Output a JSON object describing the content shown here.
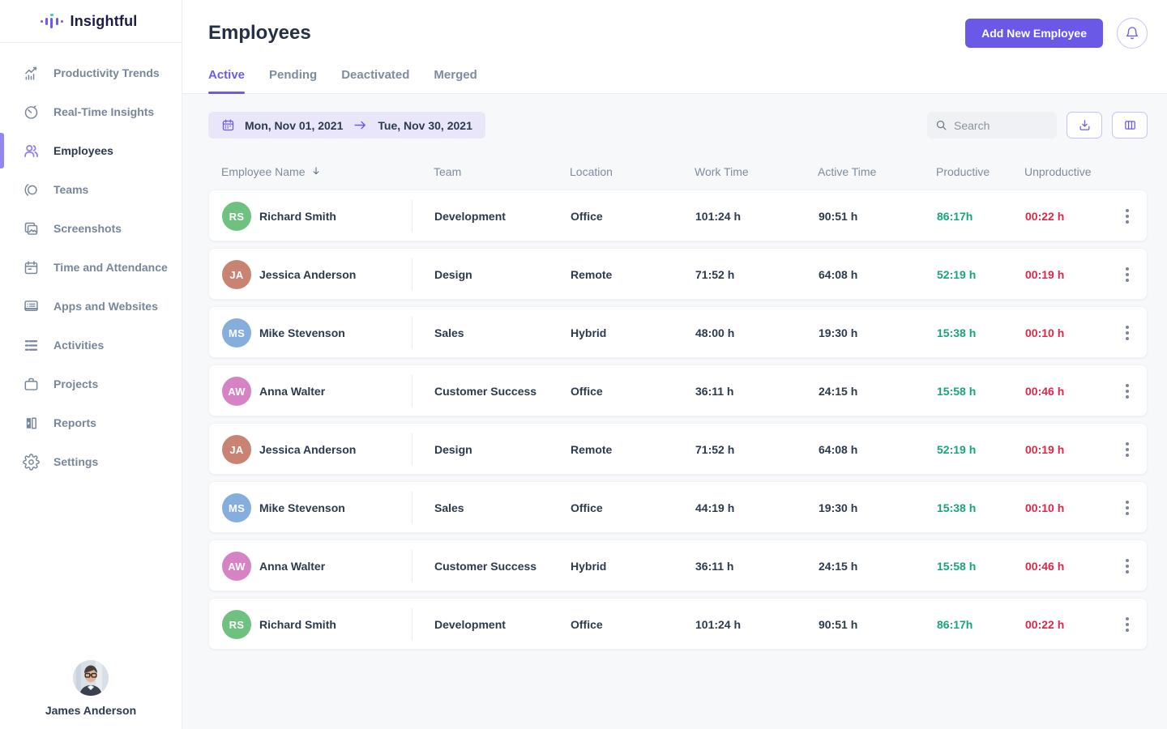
{
  "brand": {
    "name": "Insightful"
  },
  "sidebar": {
    "items": [
      {
        "label": "Productivity Trends",
        "icon": "productivity-trends-icon",
        "active": false
      },
      {
        "label": "Real-Time Insights",
        "icon": "real-time-insights-icon",
        "active": false
      },
      {
        "label": "Employees",
        "icon": "employees-icon",
        "active": true
      },
      {
        "label": "Teams",
        "icon": "teams-icon",
        "active": false
      },
      {
        "label": "Screenshots",
        "icon": "screenshots-icon",
        "active": false
      },
      {
        "label": "Time and Attendance",
        "icon": "time-attendance-icon",
        "active": false
      },
      {
        "label": "Apps and Websites",
        "icon": "apps-websites-icon",
        "active": false
      },
      {
        "label": "Activities",
        "icon": "activities-icon",
        "active": false
      },
      {
        "label": "Projects",
        "icon": "projects-icon",
        "active": false
      },
      {
        "label": "Reports",
        "icon": "reports-icon",
        "active": false
      },
      {
        "label": "Settings",
        "icon": "settings-icon",
        "active": false
      }
    ],
    "user": {
      "name": "James Anderson"
    }
  },
  "header": {
    "title": "Employees",
    "add_button_label": "Add New Employee",
    "tabs": [
      {
        "label": "Active",
        "active": true
      },
      {
        "label": "Pending",
        "active": false
      },
      {
        "label": "Deactivated",
        "active": false
      },
      {
        "label": "Merged",
        "active": false
      }
    ]
  },
  "toolbar": {
    "date_start": "Mon, Nov 01, 2021",
    "date_end": "Tue, Nov 30, 2021",
    "search_placeholder": "Search"
  },
  "table": {
    "columns": [
      "Employee Name",
      "Team",
      "Location",
      "Work Time",
      "Active Time",
      "Productive",
      "Unproductive"
    ],
    "rows": [
      {
        "initials": "RS",
        "avatar_color": "#6EC17E",
        "name": "Richard Smith",
        "team": "Development",
        "location": "Office",
        "work_time": "101:24 h",
        "active_time": "90:51 h",
        "productive": "86:17h",
        "unproductive": "00:22 h"
      },
      {
        "initials": "JA",
        "avatar_color": "#C98373",
        "name": "Jessica Anderson",
        "team": "Design",
        "location": "Remote",
        "work_time": "71:52 h",
        "active_time": "64:08 h",
        "productive": "52:19 h",
        "unproductive": "00:19 h"
      },
      {
        "initials": "MS",
        "avatar_color": "#85AEDC",
        "name": "Mike Stevenson",
        "team": "Sales",
        "location": "Hybrid",
        "work_time": "48:00 h",
        "active_time": "19:30 h",
        "productive": "15:38 h",
        "unproductive": "00:10 h"
      },
      {
        "initials": "AW",
        "avatar_color": "#D683C6",
        "name": "Anna Walter",
        "team": "Customer Success",
        "location": "Office",
        "work_time": "36:11 h",
        "active_time": "24:15 h",
        "productive": "15:58 h",
        "unproductive": "00:46 h"
      },
      {
        "initials": "JA",
        "avatar_color": "#C98373",
        "name": "Jessica Anderson",
        "team": "Design",
        "location": "Remote",
        "work_time": "71:52 h",
        "active_time": "64:08 h",
        "productive": "52:19 h",
        "unproductive": "00:19 h"
      },
      {
        "initials": "MS",
        "avatar_color": "#85AEDC",
        "name": "Mike Stevenson",
        "team": "Sales",
        "location": "Office",
        "work_time": "44:19 h",
        "active_time": "19:30 h",
        "productive": "15:38 h",
        "unproductive": "00:10 h"
      },
      {
        "initials": "AW",
        "avatar_color": "#D683C6",
        "name": "Anna Walter",
        "team": "Customer Success",
        "location": "Hybrid",
        "work_time": "36:11 h",
        "active_time": "24:15 h",
        "productive": "15:58 h",
        "unproductive": "00:46 h"
      },
      {
        "initials": "RS",
        "avatar_color": "#6EC17E",
        "name": "Richard Smith",
        "team": "Development",
        "location": "Office",
        "work_time": "101:24 h",
        "active_time": "90:51 h",
        "productive": "86:17h",
        "unproductive": "00:22 h"
      }
    ]
  },
  "colors": {
    "brand_purple": "#6C5BE8",
    "productive_green": "#18A47C",
    "unproductive_red": "#DC2547",
    "date_range_bg": "#E9E6FA",
    "page_bg": "#F7F8FA"
  }
}
